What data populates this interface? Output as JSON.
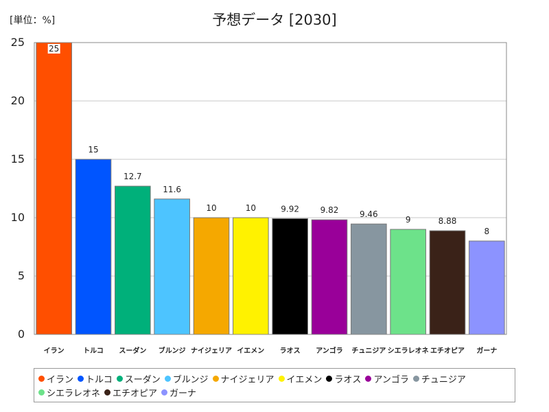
{
  "chart_data": {
    "type": "bar",
    "title": "予想データ [2030]",
    "unit_label": "[単位：%]",
    "categories": [
      "イラン",
      "トルコ",
      "スーダン",
      "ブルンジ",
      "ナイジェリア",
      "イエメン",
      "ラオス",
      "アンゴラ",
      "チュニジア",
      "シエラレオネ",
      "エチオピア",
      "ガーナ"
    ],
    "values": [
      25,
      15,
      12.7,
      11.6,
      10,
      10,
      9.92,
      9.82,
      9.46,
      9,
      8.88,
      8
    ],
    "value_labels": [
      "25",
      "15",
      "12.7",
      "11.6",
      "10",
      "10",
      "9.92",
      "9.82",
      "9.46",
      "9",
      "8.88",
      "8"
    ],
    "colors": [
      "#ff4f00",
      "#0055ff",
      "#00b07a",
      "#4dc4ff",
      "#f5a800",
      "#fff200",
      "#000000",
      "#990099",
      "#8796a0",
      "#6de28a",
      "#3a2218",
      "#8c93ff"
    ],
    "ylim": [
      0,
      25
    ],
    "yticks": [
      0,
      5,
      10,
      15,
      20,
      25
    ],
    "grid": true,
    "legend_position": "bottom"
  }
}
